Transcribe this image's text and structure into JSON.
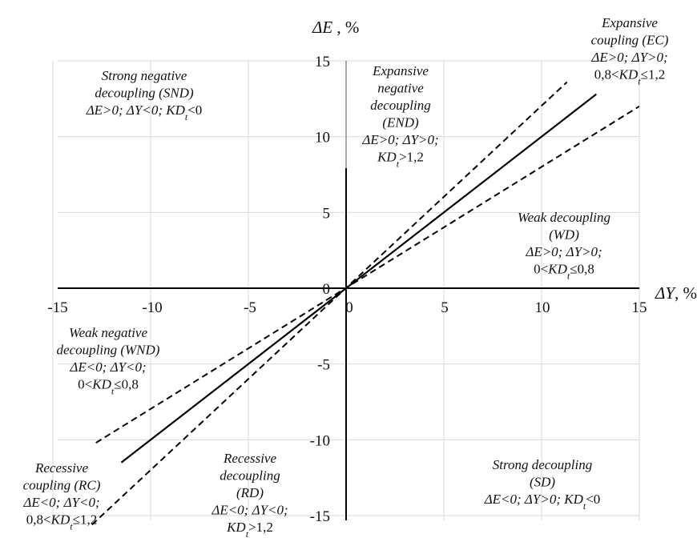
{
  "chart_data": {
    "type": "line",
    "axes": {
      "x_label_prefix": "ΔY",
      "x_label_suffix": ", %",
      "y_label_prefix": "ΔE",
      "y_label_suffix": " , %",
      "xlim": [
        -15,
        15
      ],
      "ylim": [
        -15,
        15
      ],
      "x_ticks": [
        -15,
        -10,
        -5,
        0,
        5,
        10,
        15
      ],
      "y_ticks": [
        15,
        10,
        5,
        0,
        -5,
        -10,
        -15
      ],
      "grid": true
    },
    "series": [
      {
        "style": "solid",
        "x": [
          -11.5,
          12.8
        ],
        "y": [
          -11.5,
          12.8
        ]
      },
      {
        "style": "dashed",
        "x": [
          -13.0,
          11.3
        ],
        "y": [
          -15.6,
          13.6
        ]
      },
      {
        "style": "dashed",
        "x": [
          -12.8,
          15.0
        ],
        "y": [
          -10.2,
          12.0
        ]
      }
    ],
    "regions": [
      {
        "id": "snd",
        "lines": [
          [
            {
              "t": "Strong negative",
              "i": true
            }
          ],
          [
            {
              "t": "decoupling (SND)",
              "i": true
            }
          ],
          [
            {
              "t": "ΔE>0; ΔY<0; ",
              "i": true
            },
            {
              "t": "KD",
              "i": true
            },
            {
              "t": "t",
              "i": true,
              "sub": true
            },
            {
              "t": "<0",
              "i": false
            }
          ]
        ]
      },
      {
        "id": "end",
        "lines": [
          [
            {
              "t": "Expansive",
              "i": true
            }
          ],
          [
            {
              "t": "negative",
              "i": true
            }
          ],
          [
            {
              "t": "decoupling",
              "i": true
            }
          ],
          [
            {
              "t": "(END)",
              "i": true
            }
          ],
          [
            {
              "t": "ΔE>0; ΔY>0;",
              "i": true
            }
          ],
          [
            {
              "t": "KD",
              "i": true
            },
            {
              "t": "t",
              "i": true,
              "sub": true
            },
            {
              "t": ">1,2",
              "i": false
            }
          ]
        ]
      },
      {
        "id": "ec",
        "lines": [
          [
            {
              "t": "Expansive",
              "i": true
            }
          ],
          [
            {
              "t": "coupling (EC)",
              "i": true
            }
          ],
          [
            {
              "t": "ΔE>0; ΔY>0;",
              "i": true
            }
          ],
          [
            {
              "t": "0,8<",
              "i": false
            },
            {
              "t": "KD",
              "i": true
            },
            {
              "t": "t",
              "i": true,
              "sub": true
            },
            {
              "t": "≤1,2",
              "i": false
            }
          ]
        ]
      },
      {
        "id": "wd",
        "lines": [
          [
            {
              "t": "Weak decoupling",
              "i": true
            }
          ],
          [
            {
              "t": "(WD)",
              "i": true
            }
          ],
          [
            {
              "t": "ΔE>0; ΔY>0;",
              "i": true
            }
          ],
          [
            {
              "t": "0<",
              "i": false
            },
            {
              "t": "KD",
              "i": true
            },
            {
              "t": "t",
              "i": true,
              "sub": true
            },
            {
              "t": "≤0,8",
              "i": false
            }
          ]
        ]
      },
      {
        "id": "wnd",
        "lines": [
          [
            {
              "t": "Weak negative",
              "i": true
            }
          ],
          [
            {
              "t": "decoupling (WND)",
              "i": true
            }
          ],
          [
            {
              "t": "ΔE<0; ΔY<0;",
              "i": true
            }
          ],
          [
            {
              "t": "0<",
              "i": false
            },
            {
              "t": "KD",
              "i": true
            },
            {
              "t": "t",
              "i": true,
              "sub": true
            },
            {
              "t": "≤0,8",
              "i": false
            }
          ]
        ]
      },
      {
        "id": "rc",
        "lines": [
          [
            {
              "t": "Recessive",
              "i": true
            }
          ],
          [
            {
              "t": "coupling (RC)",
              "i": true
            }
          ],
          [
            {
              "t": "ΔE<0; ΔY<0;",
              "i": true
            }
          ],
          [
            {
              "t": "0,8<",
              "i": false
            },
            {
              "t": "KD",
              "i": true
            },
            {
              "t": "t",
              "i": true,
              "sub": true
            },
            {
              "t": "≤1,2",
              "i": false
            }
          ]
        ]
      },
      {
        "id": "rd",
        "lines": [
          [
            {
              "t": "Recessive",
              "i": true
            }
          ],
          [
            {
              "t": "decoupling",
              "i": true
            }
          ],
          [
            {
              "t": "(RD)",
              "i": true
            }
          ],
          [
            {
              "t": "ΔE<0; ΔY<0;",
              "i": true
            }
          ],
          [
            {
              "t": "KD",
              "i": true
            },
            {
              "t": "t",
              "i": true,
              "sub": true
            },
            {
              "t": ">1,2",
              "i": false
            }
          ]
        ]
      },
      {
        "id": "sd",
        "lines": [
          [
            {
              "t": "Strong decoupling",
              "i": true
            }
          ],
          [
            {
              "t": "(SD)",
              "i": true
            }
          ],
          [
            {
              "t": "ΔE<0; ΔY>0; ",
              "i": true
            },
            {
              "t": "KD",
              "i": true
            },
            {
              "t": "t",
              "i": true,
              "sub": true
            },
            {
              "t": "<0",
              "i": false
            }
          ]
        ]
      }
    ]
  }
}
